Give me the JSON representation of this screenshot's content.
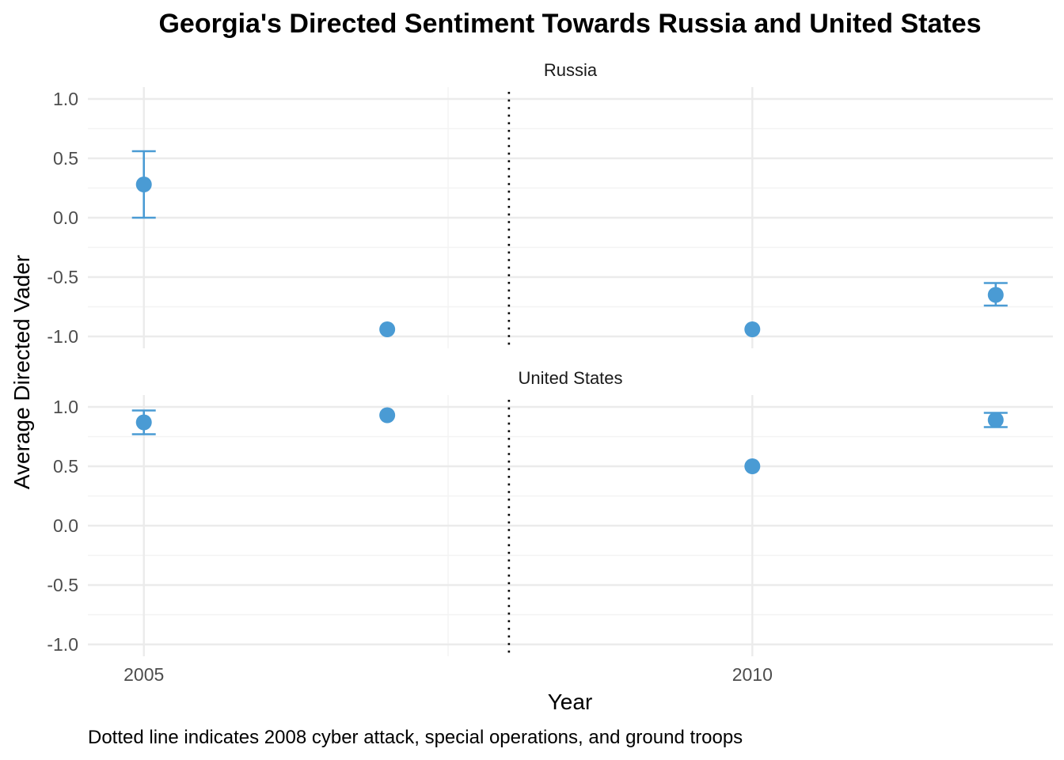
{
  "chart_data": {
    "type": "scatter",
    "title": "Georgia's Directed Sentiment Towards Russia and United States",
    "xlabel": "Year",
    "ylabel": "Average Directed Vader",
    "caption": "Dotted line indicates 2008 cyber attack, special operations, and ground troops",
    "xlim": [
      2004.54,
      2012.47
    ],
    "ylim": [
      -1.1,
      1.1
    ],
    "x_ticks": [
      2005,
      2010
    ],
    "x_tick_labels": [
      "2005",
      "2010"
    ],
    "x_minor_ticks": [
      2007.5
    ],
    "y_ticks": [
      1.0,
      0.5,
      0.0,
      -0.5,
      -1.0
    ],
    "y_tick_labels": [
      "1.0",
      "0.5",
      "0.0",
      "-0.5",
      "-1.0"
    ],
    "y_minor_ticks": [
      0.75,
      0.25,
      -0.25,
      -0.75
    ],
    "vline_x": 2008.0,
    "vline_style": "dotted",
    "point_color": "#4a9bd4",
    "grid": true,
    "legend": "none",
    "facets": [
      {
        "label": "Russia",
        "points": [
          {
            "x": 2005,
            "y": 0.28,
            "ymin": 0.0,
            "ymax": 0.56
          },
          {
            "x": 2007,
            "y": -0.94,
            "ymin": null,
            "ymax": null
          },
          {
            "x": 2010,
            "y": -0.94,
            "ymin": null,
            "ymax": null
          },
          {
            "x": 2012,
            "y": -0.65,
            "ymin": -0.74,
            "ymax": -0.55
          }
        ]
      },
      {
        "label": "United States",
        "points": [
          {
            "x": 2005,
            "y": 0.87,
            "ymin": 0.77,
            "ymax": 0.97
          },
          {
            "x": 2007,
            "y": 0.93,
            "ymin": null,
            "ymax": null
          },
          {
            "x": 2010,
            "y": 0.5,
            "ymin": null,
            "ymax": null
          },
          {
            "x": 2012,
            "y": 0.89,
            "ymin": 0.83,
            "ymax": 0.95
          }
        ]
      }
    ]
  }
}
